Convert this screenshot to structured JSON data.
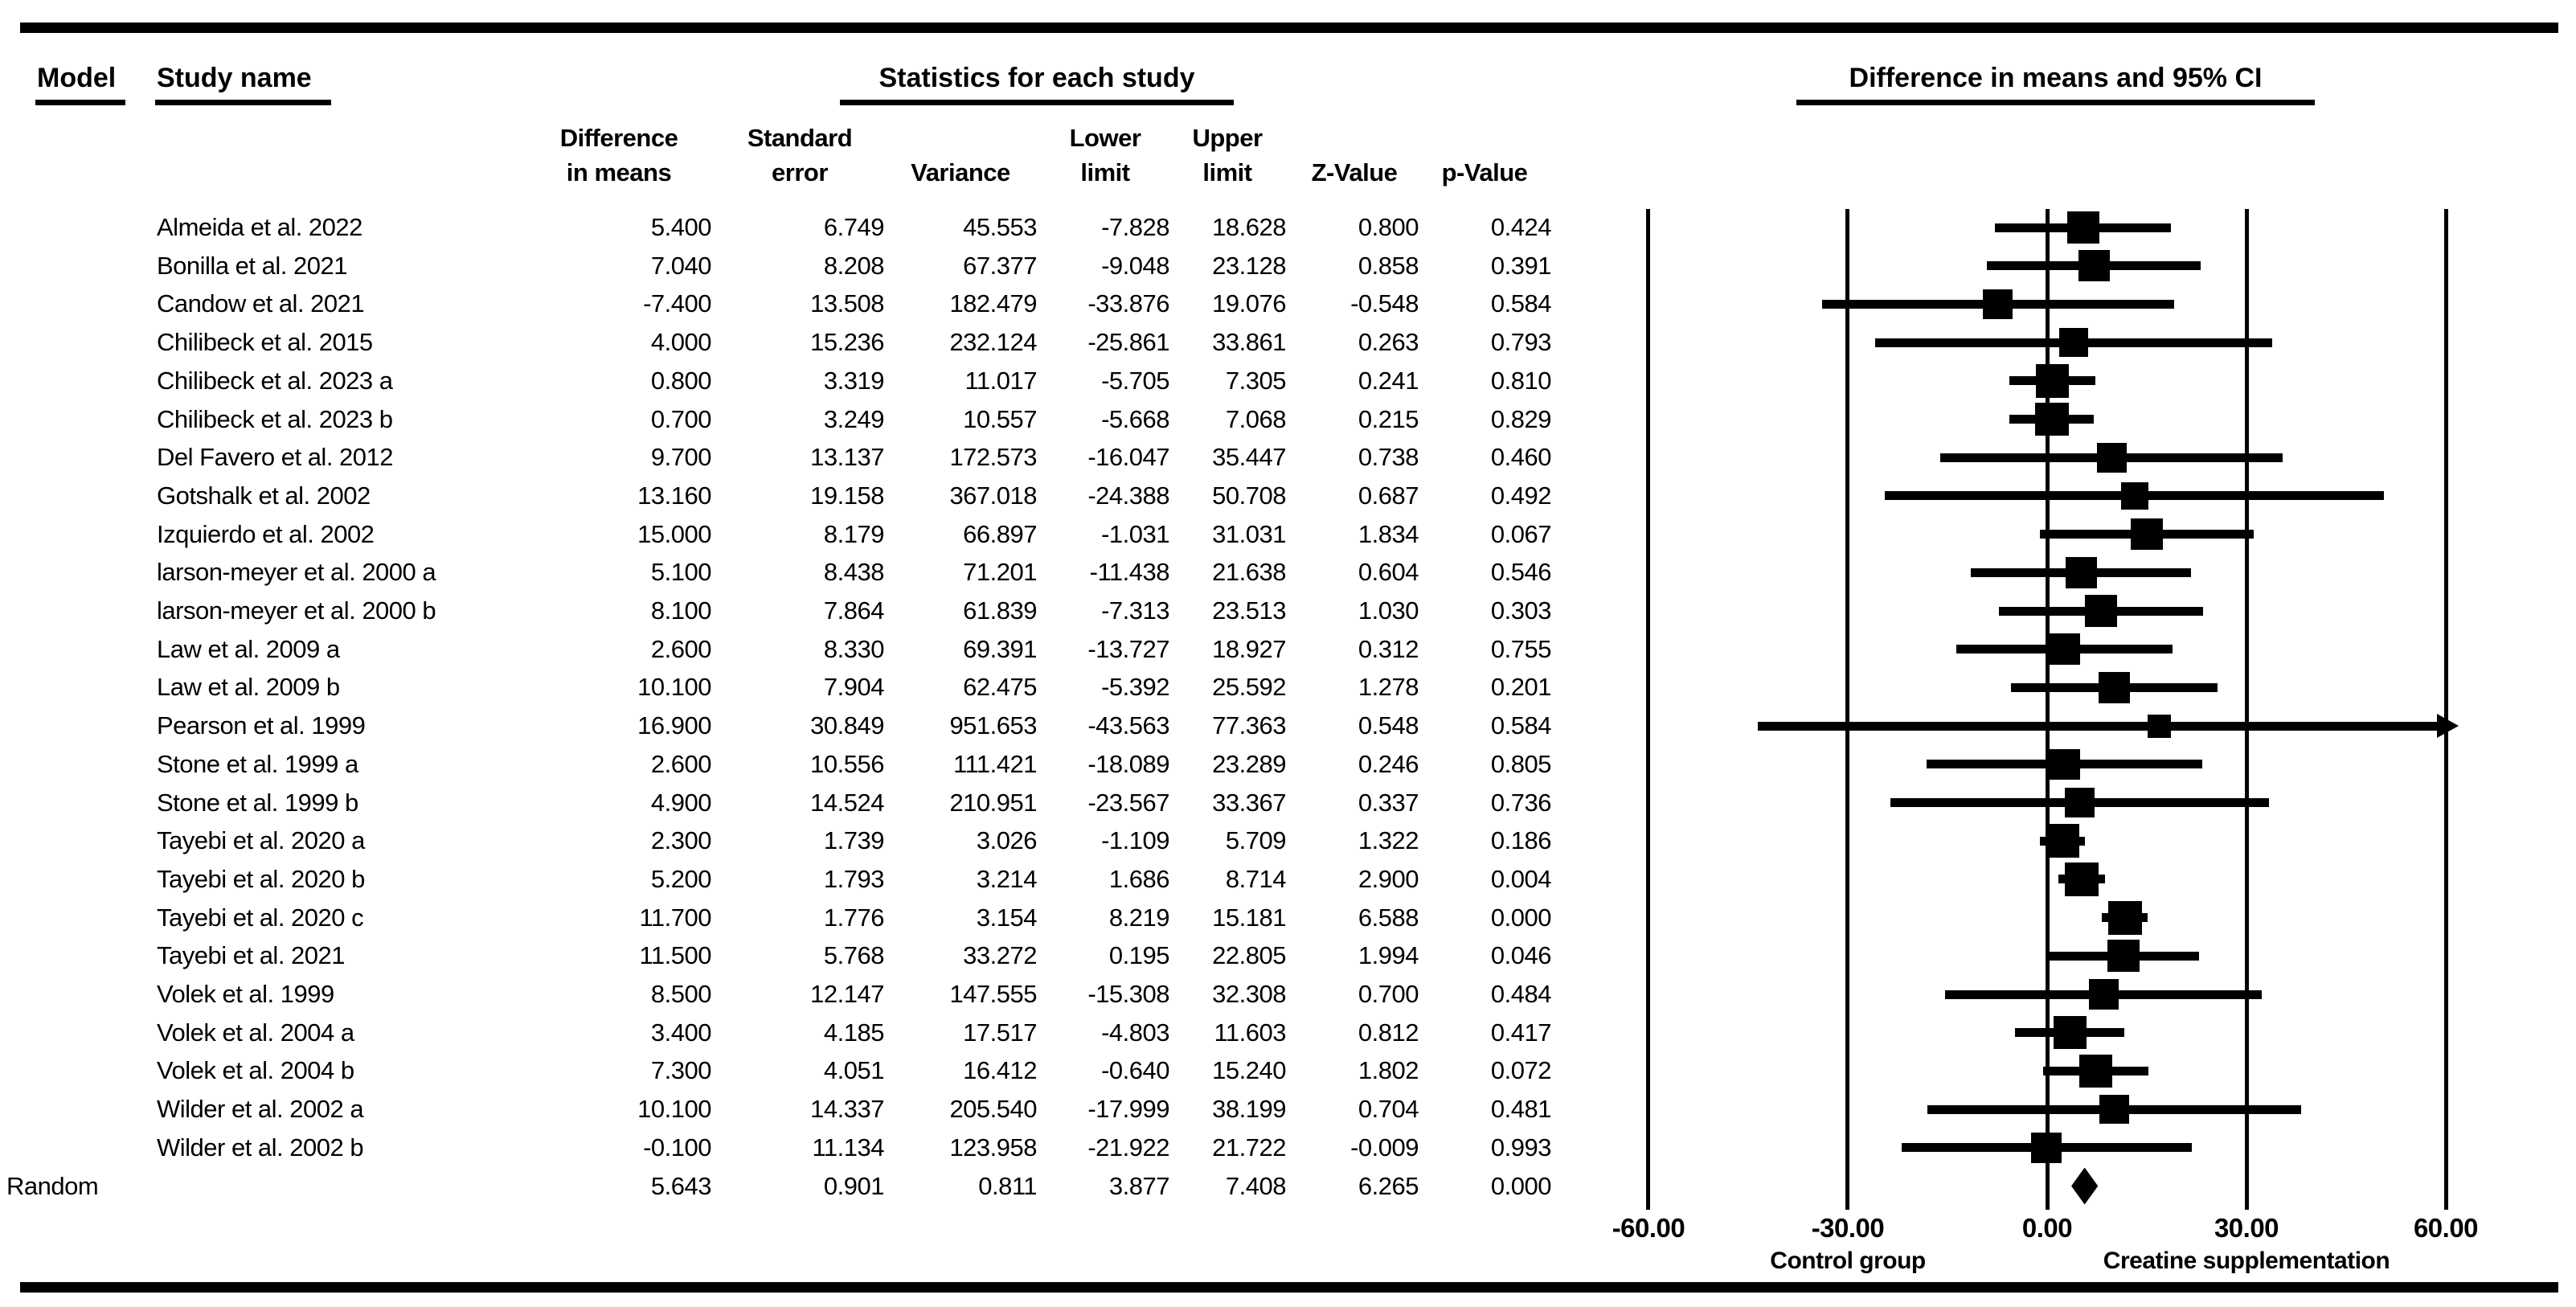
{
  "headers": {
    "model": "Model",
    "study_name": "Study name",
    "stats_group": "Statistics for each study",
    "plot_group": "Difference in means and 95% CI",
    "columns": [
      {
        "lines": [
          "Difference",
          "in means"
        ]
      },
      {
        "lines": [
          "Standard",
          "error"
        ]
      },
      {
        "lines": [
          "Variance"
        ]
      },
      {
        "lines": [
          "Lower",
          "limit"
        ]
      },
      {
        "lines": [
          "Upper",
          "limit"
        ]
      },
      {
        "lines": [
          "Z-Value"
        ]
      },
      {
        "lines": [
          "p-Value"
        ]
      }
    ]
  },
  "chart_data": {
    "type": "scatter",
    "variant": "forest-plot",
    "title": "Difference in means and 95% CI",
    "xlim": [
      -60,
      60
    ],
    "x_ticks": [
      -60,
      -30,
      0,
      30,
      60
    ],
    "grid": "vertical-reference-lines",
    "axis": {
      "left_label": "Control group",
      "right_label": "Creatine supplementation"
    },
    "model_label": "Random",
    "studies": [
      {
        "name": "Almeida et al. 2022",
        "diff": 5.4,
        "se": 6.749,
        "variance": 45.553,
        "lower": -7.828,
        "upper": 18.628,
        "z": 0.8,
        "p": 0.424
      },
      {
        "name": "Bonilla et al. 2021",
        "diff": 7.04,
        "se": 8.208,
        "variance": 67.377,
        "lower": -9.048,
        "upper": 23.128,
        "z": 0.858,
        "p": 0.391
      },
      {
        "name": "Candow et al. 2021",
        "diff": -7.4,
        "se": 13.508,
        "variance": 182.479,
        "lower": -33.876,
        "upper": 19.076,
        "z": -0.548,
        "p": 0.584
      },
      {
        "name": "Chilibeck et al. 2015",
        "diff": 4.0,
        "se": 15.236,
        "variance": 232.124,
        "lower": -25.861,
        "upper": 33.861,
        "z": 0.263,
        "p": 0.793
      },
      {
        "name": "Chilibeck et al. 2023 a",
        "diff": 0.8,
        "se": 3.319,
        "variance": 11.017,
        "lower": -5.705,
        "upper": 7.305,
        "z": 0.241,
        "p": 0.81
      },
      {
        "name": "Chilibeck et al. 2023 b",
        "diff": 0.7,
        "se": 3.249,
        "variance": 10.557,
        "lower": -5.668,
        "upper": 7.068,
        "z": 0.215,
        "p": 0.829
      },
      {
        "name": "Del Favero et al. 2012",
        "diff": 9.7,
        "se": 13.137,
        "variance": 172.573,
        "lower": -16.047,
        "upper": 35.447,
        "z": 0.738,
        "p": 0.46
      },
      {
        "name": "Gotshalk et al. 2002",
        "diff": 13.16,
        "se": 19.158,
        "variance": 367.018,
        "lower": -24.388,
        "upper": 50.708,
        "z": 0.687,
        "p": 0.492
      },
      {
        "name": "Izquierdo et al. 2002",
        "diff": 15.0,
        "se": 8.179,
        "variance": 66.897,
        "lower": -1.031,
        "upper": 31.031,
        "z": 1.834,
        "p": 0.067
      },
      {
        "name": "larson-meyer et al. 2000 a",
        "diff": 5.1,
        "se": 8.438,
        "variance": 71.201,
        "lower": -11.438,
        "upper": 21.638,
        "z": 0.604,
        "p": 0.546
      },
      {
        "name": "larson-meyer et al. 2000 b",
        "diff": 8.1,
        "se": 7.864,
        "variance": 61.839,
        "lower": -7.313,
        "upper": 23.513,
        "z": 1.03,
        "p": 0.303
      },
      {
        "name": "Law et al. 2009 a",
        "diff": 2.6,
        "se": 8.33,
        "variance": 69.391,
        "lower": -13.727,
        "upper": 18.927,
        "z": 0.312,
        "p": 0.755
      },
      {
        "name": "Law et al. 2009 b",
        "diff": 10.1,
        "se": 7.904,
        "variance": 62.475,
        "lower": -5.392,
        "upper": 25.592,
        "z": 1.278,
        "p": 0.201
      },
      {
        "name": "Pearson et al. 1999",
        "diff": 16.9,
        "se": 30.849,
        "variance": 951.653,
        "lower": -43.563,
        "upper": 77.363,
        "z": 0.548,
        "p": 0.584
      },
      {
        "name": "Stone et al. 1999 a",
        "diff": 2.6,
        "se": 10.556,
        "variance": 111.421,
        "lower": -18.089,
        "upper": 23.289,
        "z": 0.246,
        "p": 0.805
      },
      {
        "name": "Stone et al. 1999 b",
        "diff": 4.9,
        "se": 14.524,
        "variance": 210.951,
        "lower": -23.567,
        "upper": 33.367,
        "z": 0.337,
        "p": 0.736
      },
      {
        "name": "Tayebi et al. 2020 a",
        "diff": 2.3,
        "se": 1.739,
        "variance": 3.026,
        "lower": -1.109,
        "upper": 5.709,
        "z": 1.322,
        "p": 0.186
      },
      {
        "name": "Tayebi et al. 2020 b",
        "diff": 5.2,
        "se": 1.793,
        "variance": 3.214,
        "lower": 1.686,
        "upper": 8.714,
        "z": 2.9,
        "p": 0.004
      },
      {
        "name": "Tayebi et al. 2020 c",
        "diff": 11.7,
        "se": 1.776,
        "variance": 3.154,
        "lower": 8.219,
        "upper": 15.181,
        "z": 6.588,
        "p": 0.0
      },
      {
        "name": "Tayebi et al. 2021",
        "diff": 11.5,
        "se": 5.768,
        "variance": 33.272,
        "lower": 0.195,
        "upper": 22.805,
        "z": 1.994,
        "p": 0.046
      },
      {
        "name": "Volek et al. 1999",
        "diff": 8.5,
        "se": 12.147,
        "variance": 147.555,
        "lower": -15.308,
        "upper": 32.308,
        "z": 0.7,
        "p": 0.484
      },
      {
        "name": "Volek et al. 2004 a",
        "diff": 3.4,
        "se": 4.185,
        "variance": 17.517,
        "lower": -4.803,
        "upper": 11.603,
        "z": 0.812,
        "p": 0.417
      },
      {
        "name": "Volek et al. 2004 b",
        "diff": 7.3,
        "se": 4.051,
        "variance": 16.412,
        "lower": -0.64,
        "upper": 15.24,
        "z": 1.802,
        "p": 0.072
      },
      {
        "name": "Wilder et al. 2002 a",
        "diff": 10.1,
        "se": 14.337,
        "variance": 205.54,
        "lower": -17.999,
        "upper": 38.199,
        "z": 0.704,
        "p": 0.481
      },
      {
        "name": "Wilder et al. 2002 b",
        "diff": -0.1,
        "se": 11.134,
        "variance": 123.958,
        "lower": -21.922,
        "upper": 21.722,
        "z": -0.009,
        "p": 0.993
      }
    ],
    "summary": {
      "model": "Random",
      "diff": 5.643,
      "se": 0.901,
      "variance": 0.811,
      "lower": 3.877,
      "upper": 7.408,
      "z": 6.265,
      "p": 0.0
    }
  }
}
